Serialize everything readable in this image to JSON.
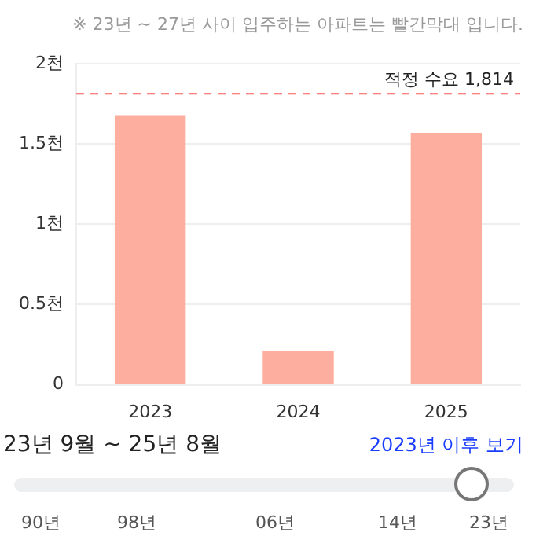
{
  "chart_data": {
    "type": "bar",
    "subtitle": "※ 23년 ~ 27년 사이 입주하는 아파트는 빨간막대 입니다.",
    "categories": [
      "2023",
      "2024",
      "2025"
    ],
    "values": [
      1.68,
      0.21,
      1.57
    ],
    "color": "#fdae9f",
    "ylim": [
      0,
      2
    ],
    "yticks": [
      {
        "value": 0,
        "label": "0"
      },
      {
        "value": 0.5,
        "label": "0.5천"
      },
      {
        "value": 1,
        "label": "1천"
      },
      {
        "value": 1.5,
        "label": "1.5천"
      },
      {
        "value": 2,
        "label": "2천"
      }
    ],
    "grid": "y",
    "ref_lines": [
      {
        "axis": "y",
        "value": 1.814,
        "label": "적정 수요 1,814",
        "color": "#ff5a5a",
        "line_style": "dashed"
      }
    ],
    "annotations": [
      "23년 9월 ~ 25년 8월",
      "2023년 이후 보기",
      "90년",
      "98년",
      "06년",
      "14년",
      "23년"
    ]
  }
}
